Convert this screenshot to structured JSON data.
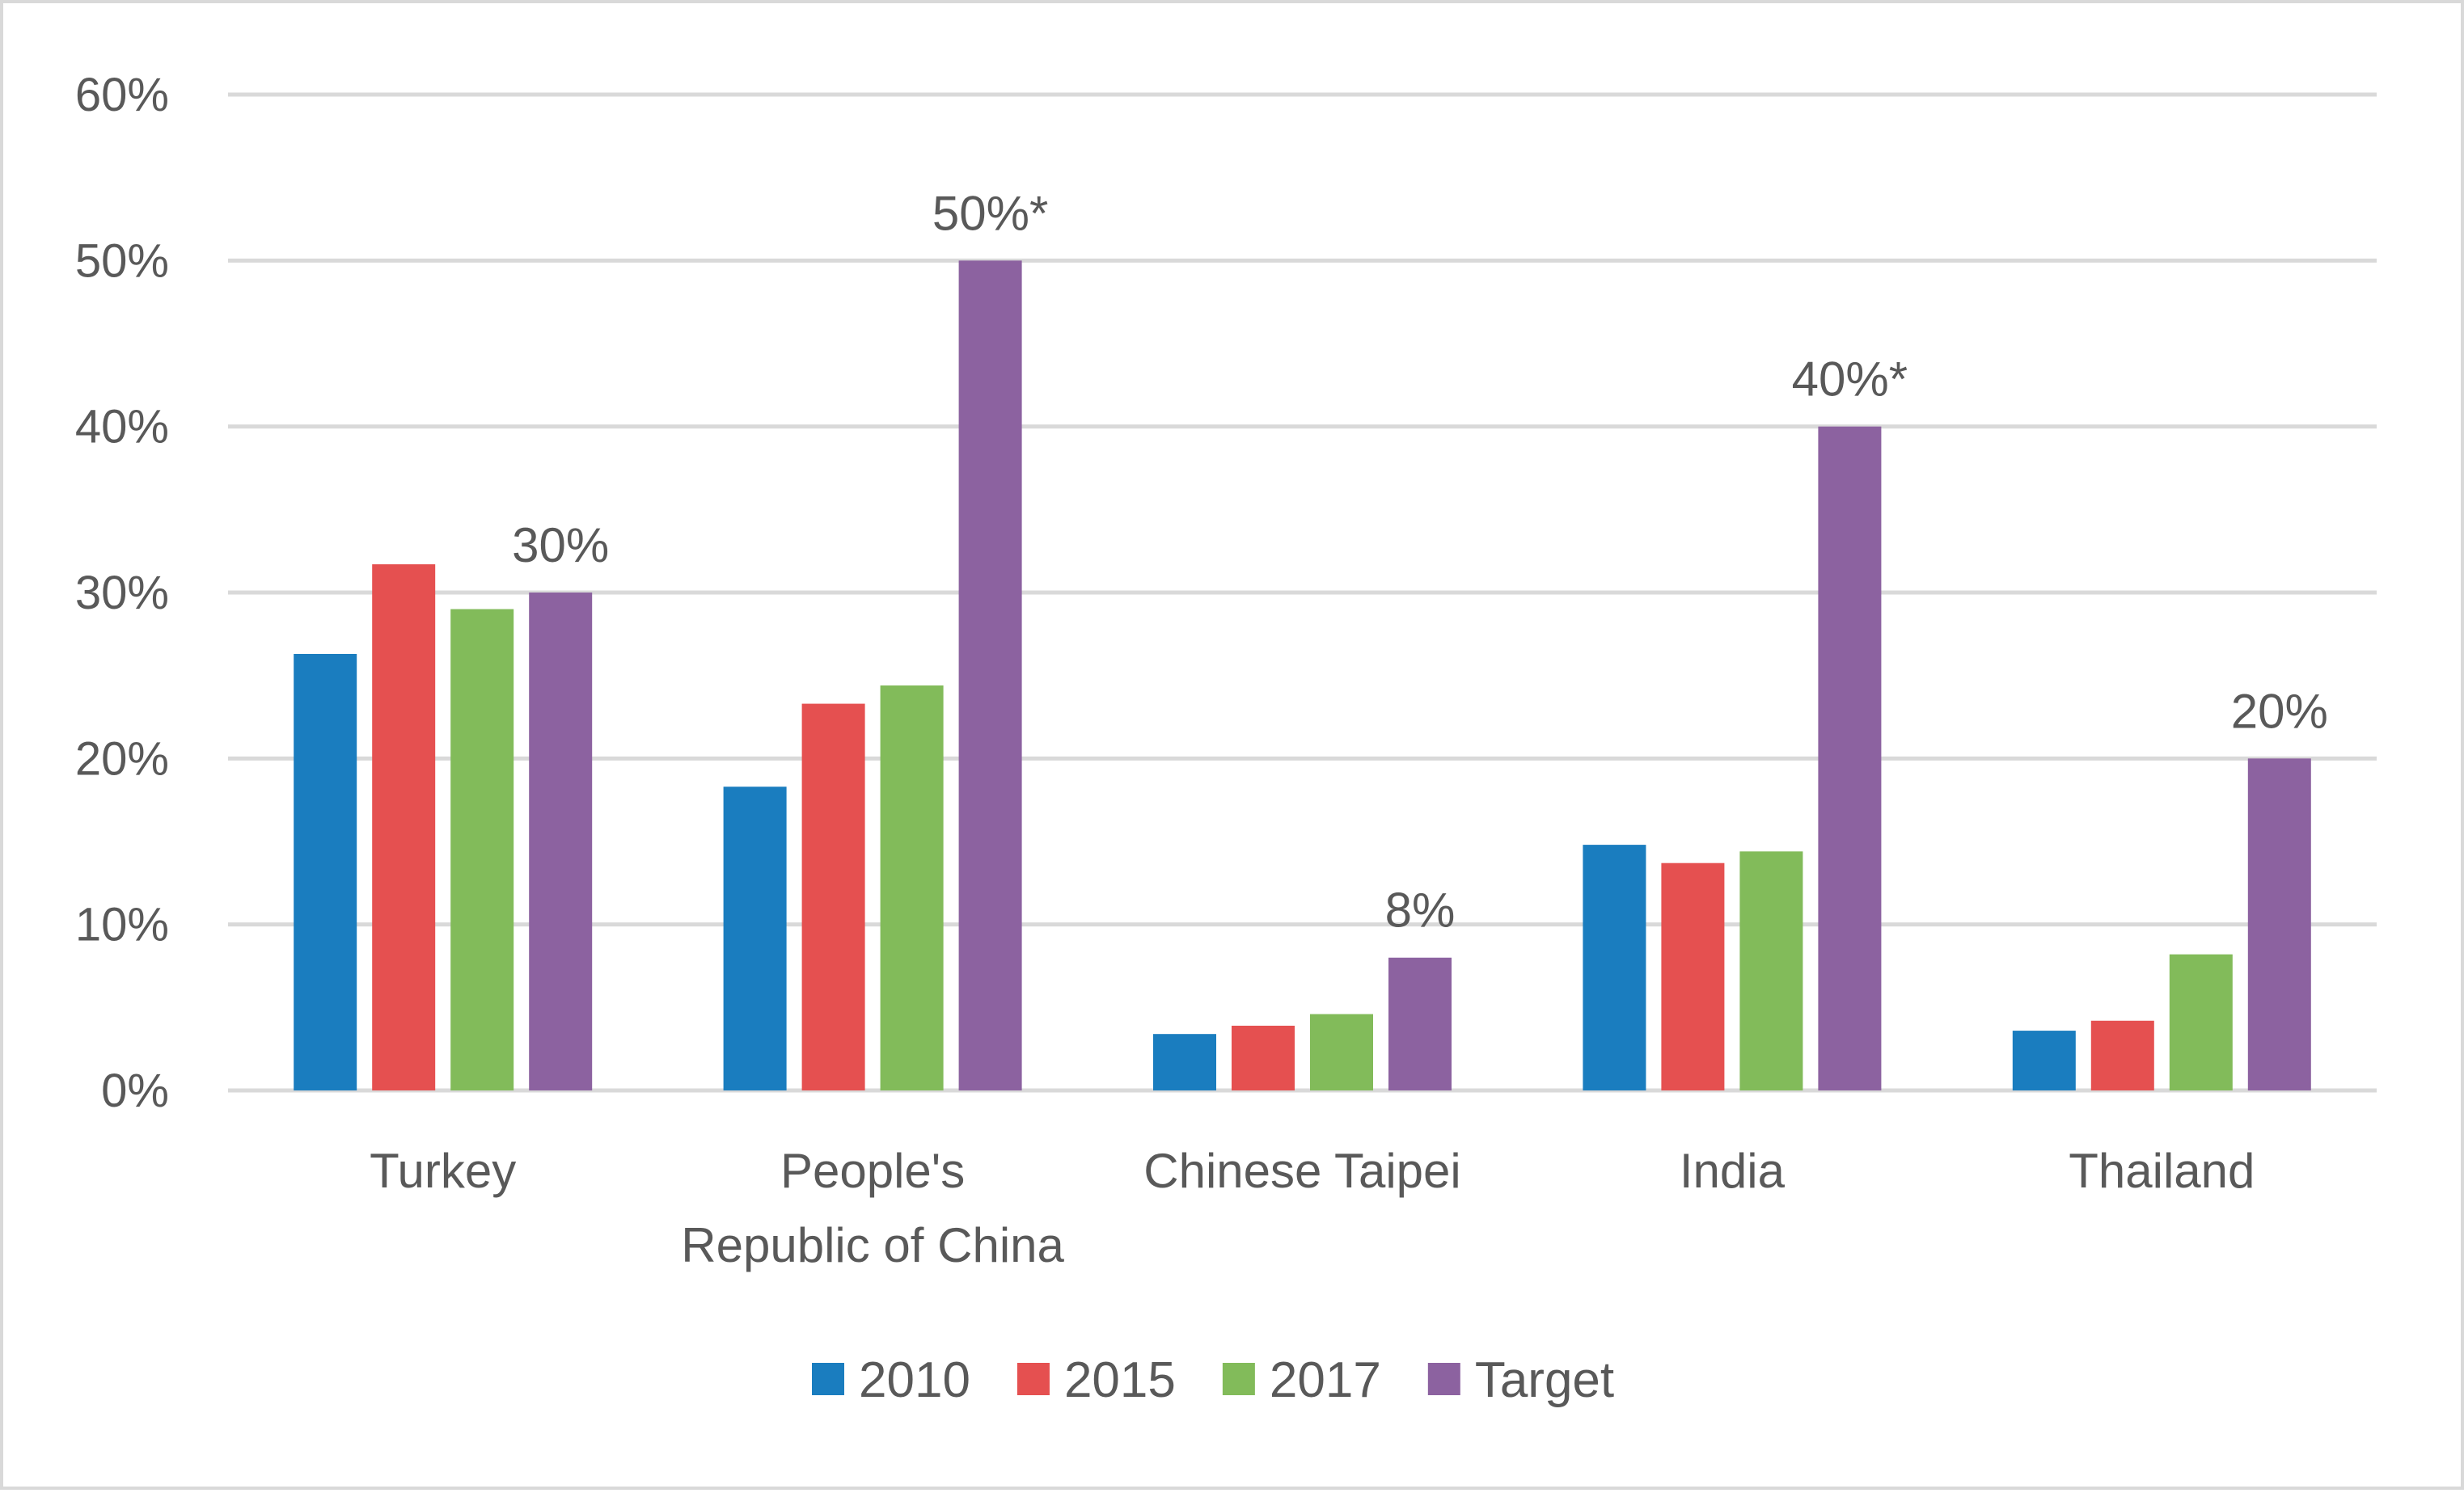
{
  "chart_data": {
    "type": "bar",
    "title": "",
    "xlabel": "",
    "ylabel": "",
    "ylim": [
      0,
      60
    ],
    "y_ticks": [
      "0%",
      "10%",
      "20%",
      "30%",
      "40%",
      "50%",
      "60%"
    ],
    "grid": true,
    "legend_position": "bottom",
    "categories": [
      [
        "Turkey"
      ],
      [
        "People's",
        "Republic of China"
      ],
      [
        "Chinese Taipei"
      ],
      [
        "India"
      ],
      [
        "Thailand"
      ]
    ],
    "series": [
      {
        "name": "2010",
        "color": "#1a7dbf",
        "values": [
          26.3,
          18.3,
          3.4,
          14.8,
          3.6
        ]
      },
      {
        "name": "2015",
        "color": "#e55050",
        "values": [
          31.7,
          23.3,
          3.9,
          13.7,
          4.2
        ]
      },
      {
        "name": "2017",
        "color": "#82bb5a",
        "values": [
          29.0,
          24.4,
          4.6,
          14.4,
          8.2
        ]
      },
      {
        "name": "Target",
        "color": "#8c62a0",
        "values": [
          30,
          50,
          8,
          40,
          20
        ]
      }
    ],
    "data_labels": {
      "series": "Target",
      "labels": [
        "30%",
        "50%*",
        "8%",
        "40%*",
        "20%"
      ]
    }
  }
}
